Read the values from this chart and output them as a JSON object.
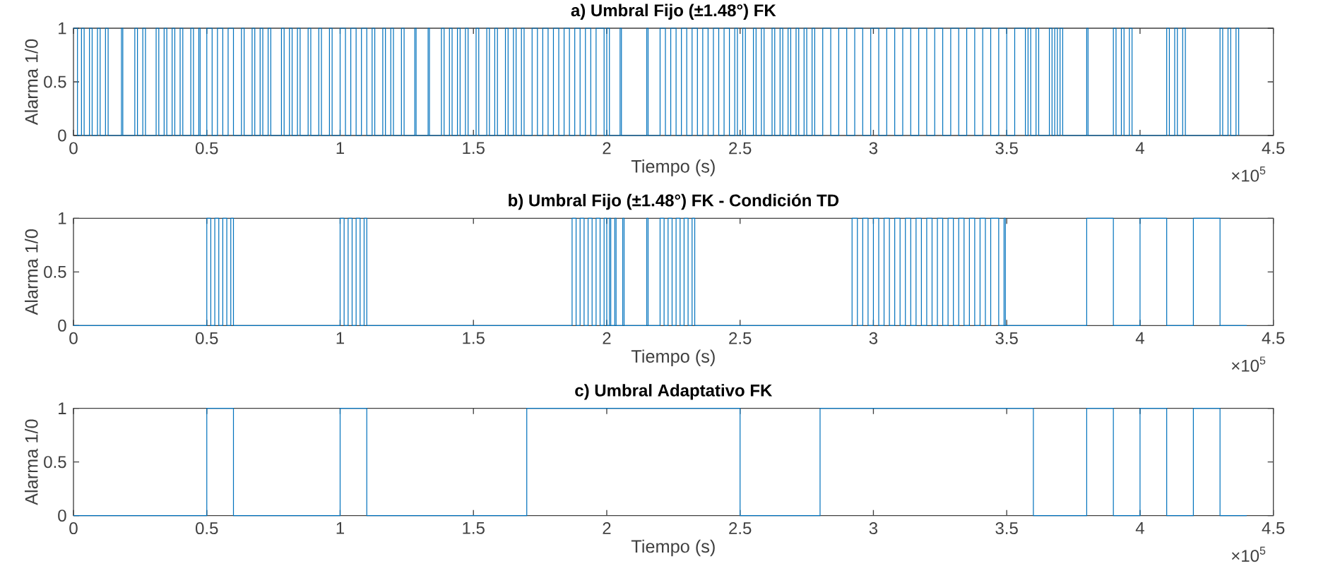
{
  "chart_data": [
    {
      "type": "step",
      "title": "a) Umbral Fijo (±1.48°) FK",
      "xlabel": "Tiempo (s)",
      "ylabel": "Alarma 1/0",
      "color": "#0072bd",
      "xlim": [
        0,
        4.5
      ],
      "ylim": [
        0,
        1
      ],
      "xticks": [
        0,
        0.5,
        1,
        1.5,
        2,
        2.5,
        3,
        3.5,
        4,
        4.5
      ],
      "yticks": [
        0,
        0.5,
        1
      ],
      "annotations": [
        "×10$^{5}$"
      ],
      "x": [
        0,
        0.015,
        0.03,
        0.04,
        0.06,
        0.07,
        0.09,
        0.1,
        0.12,
        0.13,
        0.18,
        0.185,
        0.23,
        0.24,
        0.26,
        0.27,
        0.31,
        0.32,
        0.34,
        0.35,
        0.37,
        0.38,
        0.4,
        0.41,
        0.44,
        0.45,
        0.47,
        0.475,
        0.5,
        0.52,
        0.54,
        0.56,
        0.58,
        0.6,
        0.63,
        0.64,
        0.67,
        0.68,
        0.7,
        0.71,
        0.73,
        0.74,
        0.78,
        0.79,
        0.81,
        0.82,
        0.84,
        0.85,
        0.88,
        0.89,
        0.92,
        0.93,
        0.96,
        0.97,
        1,
        1.02,
        1.04,
        1.06,
        1.08,
        1.1,
        1.12,
        1.13,
        1.16,
        1.17,
        1.19,
        1.2,
        1.23,
        1.24,
        1.28,
        1.285,
        1.33,
        1.335,
        1.38,
        1.39,
        1.41,
        1.42,
        1.44,
        1.45,
        1.47,
        1.48,
        1.51,
        1.52,
        1.55,
        1.56,
        1.58,
        1.59,
        1.62,
        1.63,
        1.65,
        1.66,
        1.68,
        1.69,
        1.72,
        1.74,
        1.76,
        1.78,
        1.8,
        1.82,
        1.84,
        1.86,
        1.88,
        1.9,
        1.92,
        1.94,
        1.96,
        1.99,
        2,
        2.01,
        2.05,
        2.055,
        2.15,
        2.155,
        2.2,
        2.22,
        2.24,
        2.26,
        2.28,
        2.3,
        2.32,
        2.34,
        2.36,
        2.38,
        2.4,
        2.42,
        2.44,
        2.46,
        2.48,
        2.49,
        2.51,
        2.52,
        2.55,
        2.56,
        2.58,
        2.59,
        2.62,
        2.63,
        2.65,
        2.66,
        2.68,
        2.69,
        2.71,
        2.72,
        2.74,
        2.75,
        2.77,
        2.78,
        2.81,
        2.84,
        2.87,
        2.9,
        2.93,
        2.96,
        2.99,
        3.02,
        3.05,
        3.08,
        3.11,
        3.14,
        3.17,
        3.2,
        3.23,
        3.26,
        3.29,
        3.32,
        3.35,
        3.38,
        3.41,
        3.44,
        3.47,
        3.5,
        3.53,
        3.57,
        3.58,
        3.59,
        3.61,
        3.62,
        3.66,
        3.67,
        3.68,
        3.69,
        3.7,
        3.71,
        3.8,
        3.805,
        3.9,
        3.91,
        3.93,
        3.94,
        3.96,
        3.97,
        4.1,
        4.11,
        4.13,
        4.14,
        4.16,
        4.17,
        4.3,
        4.31,
        4.33,
        4.34,
        4.36,
        4.37
      ],
      "values": [
        1,
        0,
        1,
        0,
        1,
        0,
        1,
        0,
        1,
        0,
        1,
        0,
        1,
        0,
        1,
        0,
        1,
        0,
        1,
        0,
        1,
        0,
        1,
        0,
        1,
        0,
        1,
        0,
        1,
        0,
        1,
        0,
        1,
        0,
        1,
        0,
        1,
        0,
        1,
        0,
        1,
        0,
        1,
        0,
        1,
        0,
        1,
        0,
        1,
        0,
        1,
        0,
        1,
        0,
        1,
        0,
        1,
        0,
        1,
        0,
        1,
        0,
        1,
        0,
        1,
        0,
        1,
        0,
        1,
        0,
        1,
        0,
        1,
        0,
        1,
        0,
        1,
        0,
        1,
        0,
        1,
        0,
        1,
        0,
        1,
        0,
        1,
        0,
        1,
        0,
        1,
        0,
        1,
        0,
        1,
        0,
        1,
        0,
        1,
        0,
        1,
        0,
        1,
        0,
        1,
        0,
        1,
        0,
        1,
        0,
        1,
        0,
        1,
        0,
        1,
        0,
        1,
        0,
        1,
        0,
        1,
        0,
        1,
        0,
        1,
        0,
        1,
        0,
        1,
        0,
        1,
        0,
        1,
        0,
        1,
        0,
        1,
        0,
        1,
        0,
        1,
        0,
        1,
        0,
        1,
        0,
        1,
        0,
        1,
        0,
        1,
        0,
        1,
        0,
        1,
        0,
        1,
        0,
        1,
        0,
        1,
        0,
        1,
        0,
        1,
        0,
        1,
        0,
        1,
        0,
        1,
        0,
        1,
        0,
        1,
        0,
        1,
        0,
        1,
        0,
        1,
        0,
        1,
        0,
        1,
        0,
        1,
        0,
        1,
        0,
        1,
        0,
        1,
        0,
        1,
        0,
        1,
        0,
        1,
        0,
        1,
        0
      ]
    },
    {
      "type": "step",
      "title": "b) Umbral Fijo (±1.48°) FK - Condición TD",
      "xlabel": "Tiempo (s)",
      "ylabel": "Alarma 1/0",
      "color": "#0072bd",
      "xlim": [
        0,
        4.5
      ],
      "ylim": [
        0,
        1
      ],
      "xticks": [
        0,
        0.5,
        1,
        1.5,
        2,
        2.5,
        3,
        3.5,
        4,
        4.5
      ],
      "yticks": [
        0,
        0.5,
        1
      ],
      "annotations": [
        "×10$^{5}$"
      ],
      "x": [
        0,
        0.5,
        0.515,
        0.53,
        0.545,
        0.56,
        0.575,
        0.59,
        0.6,
        1,
        1.015,
        1.03,
        1.045,
        1.06,
        1.075,
        1.09,
        1.1,
        1.87,
        1.885,
        1.9,
        1.915,
        1.93,
        1.945,
        1.96,
        1.975,
        1.99,
        2,
        2.01,
        2.015,
        2.03,
        2.035,
        2.06,
        2.065,
        2.15,
        2.155,
        2.2,
        2.215,
        2.23,
        2.245,
        2.26,
        2.275,
        2.29,
        2.305,
        2.32,
        2.33,
        2.92,
        2.94,
        2.96,
        2.98,
        3,
        3.02,
        3.04,
        3.06,
        3.08,
        3.1,
        3.12,
        3.14,
        3.16,
        3.18,
        3.2,
        3.22,
        3.24,
        3.26,
        3.28,
        3.3,
        3.32,
        3.34,
        3.36,
        3.38,
        3.4,
        3.42,
        3.44,
        3.47,
        3.49,
        3.495,
        3.8,
        3.9,
        4,
        4.1,
        4.2,
        4.3,
        4.4
      ],
      "values": [
        0,
        1,
        0,
        1,
        0,
        1,
        0,
        1,
        0,
        1,
        0,
        1,
        0,
        1,
        0,
        1,
        0,
        1,
        0,
        1,
        0,
        1,
        0,
        1,
        0,
        1,
        0,
        1,
        0,
        1,
        0,
        1,
        0,
        1,
        0,
        1,
        0,
        1,
        0,
        1,
        0,
        1,
        0,
        1,
        0,
        1,
        0,
        1,
        0,
        1,
        0,
        1,
        0,
        1,
        0,
        1,
        0,
        1,
        0,
        1,
        0,
        1,
        0,
        1,
        0,
        1,
        0,
        1,
        0,
        1,
        0,
        1,
        0,
        1,
        0,
        1,
        0,
        1,
        0,
        1,
        0,
        0
      ]
    },
    {
      "type": "step",
      "title": "c) Umbral Adaptativo FK",
      "xlabel": "Tiempo (s)",
      "ylabel": "Alarma 1/0",
      "color": "#0072bd",
      "xlim": [
        0,
        4.5
      ],
      "ylim": [
        0,
        1
      ],
      "xticks": [
        0,
        0.5,
        1,
        1.5,
        2,
        2.5,
        3,
        3.5,
        4,
        4.5
      ],
      "yticks": [
        0,
        0.5,
        1
      ],
      "annotations": [
        "×10$^{5}$"
      ],
      "x": [
        0,
        0.5,
        0.6,
        1,
        1.1,
        1.7,
        2.5,
        2.8,
        3.6,
        3.8,
        3.9,
        4,
        4.1,
        4.2,
        4.3,
        4.4
      ],
      "values": [
        0,
        1,
        0,
        1,
        0,
        1,
        0,
        1,
        0,
        1,
        0,
        1,
        0,
        1,
        0,
        0
      ]
    }
  ]
}
